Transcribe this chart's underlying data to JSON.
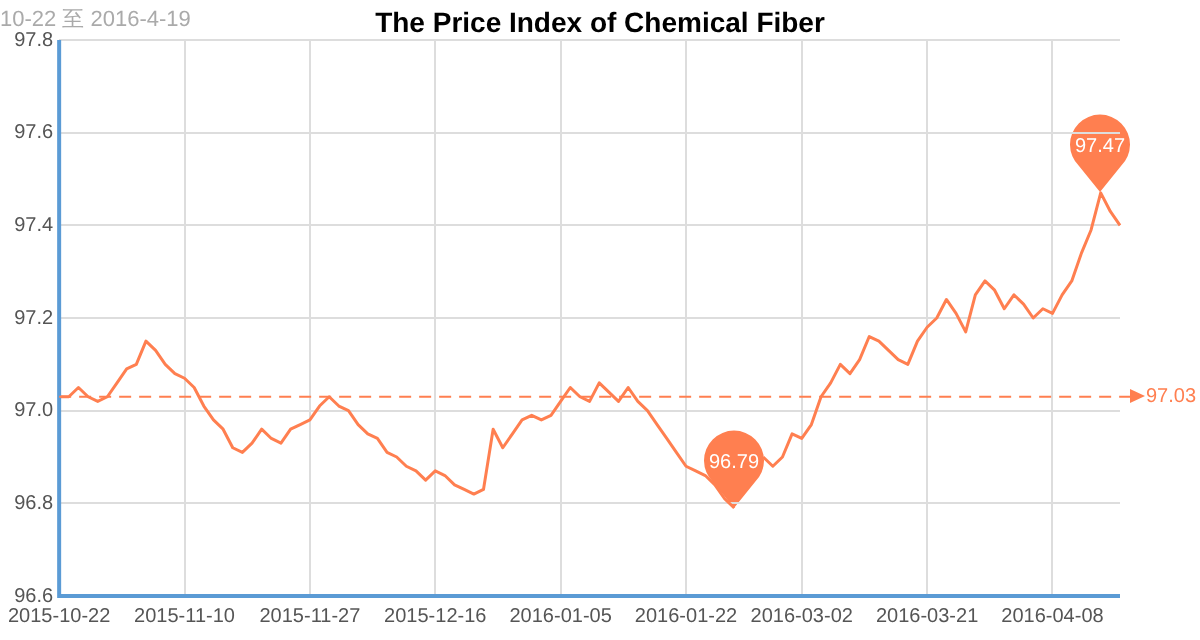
{
  "chart_data": {
    "type": "line",
    "title": "The Price Index of Chemical Fiber",
    "subtitle": "10-22 至 2016-4-19",
    "categories": [
      "2015-10-22",
      null,
      null,
      null,
      null,
      null,
      null,
      null,
      null,
      null,
      null,
      null,
      null,
      "2015-11-10",
      null,
      null,
      null,
      null,
      null,
      null,
      null,
      null,
      null,
      null,
      null,
      null,
      "2015-11-27",
      null,
      null,
      null,
      null,
      null,
      null,
      null,
      null,
      null,
      null,
      null,
      null,
      "2015-12-16",
      null,
      null,
      null,
      null,
      null,
      null,
      null,
      null,
      null,
      null,
      null,
      null,
      "2016-01-05",
      null,
      null,
      null,
      null,
      null,
      null,
      null,
      null,
      null,
      null,
      null,
      null,
      "2016-01-22",
      null,
      null,
      null,
      null,
      null,
      null,
      null,
      null,
      null,
      null,
      null,
      "2016-03-02",
      null,
      null,
      null,
      null,
      null,
      null,
      null,
      null,
      null,
      null,
      null,
      null,
      "2016-03-21",
      null,
      null,
      null,
      null,
      null,
      null,
      null,
      null,
      null,
      null,
      null,
      null,
      "2016-04-08",
      null,
      null,
      null,
      null,
      null,
      null,
      null
    ],
    "series": [
      {
        "color": "#ff7f50",
        "values": [
          97.03,
          97.03,
          97.05,
          97.03,
          97.02,
          97.03,
          97.06,
          97.09,
          97.1,
          97.15,
          97.13,
          97.1,
          97.08,
          97.07,
          97.05,
          97.01,
          96.98,
          96.96,
          96.92,
          96.91,
          96.93,
          96.96,
          96.94,
          96.93,
          96.96,
          96.97,
          96.98,
          97.01,
          97.03,
          97.01,
          97.0,
          96.97,
          96.95,
          96.94,
          96.91,
          96.9,
          96.88,
          96.87,
          96.85,
          96.87,
          96.86,
          96.84,
          96.83,
          96.82,
          96.83,
          96.96,
          96.92,
          96.95,
          96.98,
          96.99,
          96.98,
          96.99,
          97.02,
          97.05,
          97.03,
          97.02,
          97.06,
          97.04,
          97.02,
          97.05,
          97.02,
          97.0,
          96.97,
          96.94,
          96.91,
          96.88,
          96.87,
          96.86,
          96.84,
          96.81,
          96.79,
          null,
          null,
          96.9,
          96.88,
          96.9,
          96.95,
          96.94,
          96.97,
          97.03,
          97.06,
          97.1,
          97.08,
          97.11,
          97.16,
          97.15,
          97.13,
          97.11,
          97.1,
          97.15,
          97.18,
          97.2,
          97.24,
          97.21,
          97.17,
          97.25,
          97.28,
          97.26,
          97.22,
          97.25,
          97.23,
          97.2,
          97.22,
          97.21,
          97.25,
          97.28,
          97.34,
          97.39,
          97.47,
          97.43,
          97.4
        ]
      }
    ],
    "ylim": [
      96.6,
      97.8
    ],
    "yticks": [
      96.6,
      96.8,
      {
        "value": 97,
        "label": "97.0"
      },
      97.2,
      97.4,
      97.6,
      97.8
    ],
    "grid": true,
    "legend": false,
    "marker": "none",
    "line_style": "solid",
    "ref_lines": [
      {
        "axis": "y",
        "value": 97.03,
        "label": "97.03",
        "color": "#ff7f50",
        "line_style": "dashed"
      }
    ],
    "annotations": [
      {
        "text": "97.47",
        "y": 97.47
      },
      {
        "text": "96.79",
        "y": 96.79
      }
    ]
  }
}
